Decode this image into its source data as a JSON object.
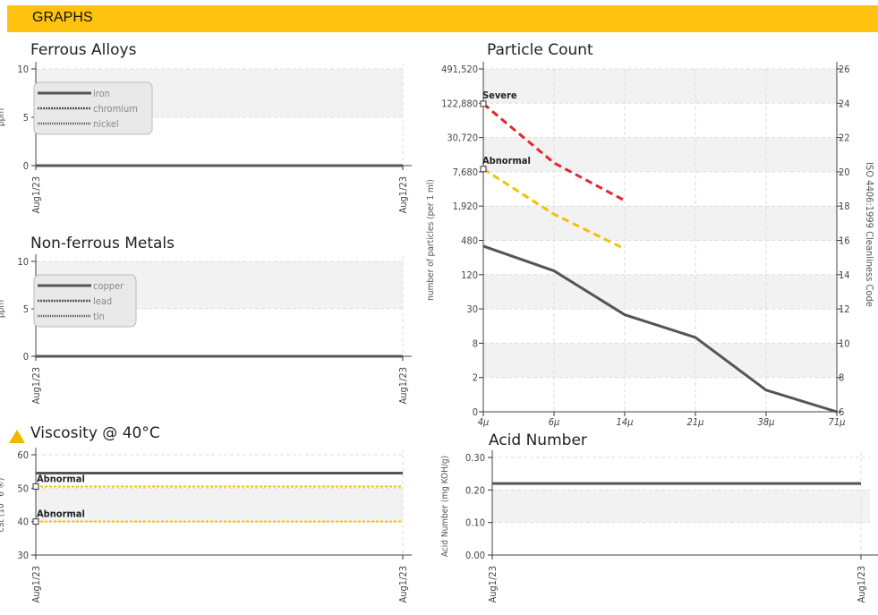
{
  "header": {
    "title": "GRAPHS"
  },
  "colors": {
    "banner": "#FFC20E",
    "line": "#555555",
    "severe": "#E3262B",
    "abnormal": "#F2C200",
    "band": "#f2f2f2",
    "grid": "#dddddd"
  },
  "chart_data": [
    {
      "id": "ferrous",
      "type": "line",
      "title": "Ferrous Alloys",
      "ylabel": "ppm",
      "ylim": [
        0,
        10
      ],
      "yticks": [
        "0",
        "5",
        "10"
      ],
      "x": [
        "Aug1/23",
        "Aug1/23"
      ],
      "legend_placement": "top-left",
      "series": [
        {
          "name": "iron",
          "values": [
            0,
            0
          ]
        },
        {
          "name": "chromium",
          "values": [
            0,
            0
          ]
        },
        {
          "name": "nickel",
          "values": [
            0,
            0
          ]
        }
      ]
    },
    {
      "id": "nonferrous",
      "type": "line",
      "title": "Non-ferrous Metals",
      "ylabel": "ppm",
      "ylim": [
        0,
        10
      ],
      "yticks": [
        "0",
        "5",
        "10"
      ],
      "x": [
        "Aug1/23",
        "Aug1/23"
      ],
      "legend_placement": "top-left",
      "series": [
        {
          "name": "copper",
          "values": [
            0,
            0
          ]
        },
        {
          "name": "lead",
          "values": [
            0,
            0
          ]
        },
        {
          "name": "tin",
          "values": [
            0,
            0
          ]
        }
      ]
    },
    {
      "id": "viscosity",
      "type": "line",
      "title": "Viscosity @ 40°C",
      "ylabel": "cSt (10^6 ®)",
      "ylim": [
        30,
        60
      ],
      "yticks": [
        "30",
        "40",
        "50",
        "60"
      ],
      "x": [
        "Aug1/23",
        "Aug1/23"
      ],
      "series": [
        {
          "values": [
            54.5,
            54.5
          ]
        }
      ],
      "limits": [
        {
          "label": "Abnormal",
          "value": 50.5
        },
        {
          "label": "Abnormal",
          "value": 40
        }
      ]
    },
    {
      "id": "particle",
      "type": "line",
      "title": "Particle Count",
      "ylabel": "number of particles (per 1 ml)",
      "ylabel_right": "ISO 4406:1999 Cleanliness Code",
      "scale": "log",
      "ylim": [
        0,
        491520
      ],
      "yticks": [
        "0",
        "2",
        "8",
        "30",
        "120",
        "480",
        "1,920",
        "7,680",
        "30,720",
        "122,880",
        "491,520"
      ],
      "yticks_right": [
        "6",
        "8",
        "10",
        "12",
        "14",
        "16",
        "18",
        "20",
        "22",
        "24",
        "26"
      ],
      "categories": [
        "4μ",
        "6μ",
        "14μ",
        "21μ",
        "38μ",
        "71μ"
      ],
      "series": [
        {
          "values": [
            380,
            140,
            24,
            10,
            1.2,
            0
          ]
        }
      ],
      "limits": [
        {
          "label": "Severe",
          "values": [
            120000,
            11000,
            2400
          ]
        },
        {
          "label": "Abnormal",
          "values": [
            8600,
            1380,
            340
          ]
        }
      ]
    },
    {
      "id": "acid",
      "type": "line",
      "title": "Acid Number",
      "ylabel": "Acid Number (mg KOH/g)",
      "ylim": [
        0,
        0.3
      ],
      "yticks": [
        "0.00",
        "0.10",
        "0.20",
        "0.30"
      ],
      "x": [
        "Aug1/23",
        "Aug1/23"
      ],
      "series": [
        {
          "values": [
            0.22,
            0.22
          ]
        }
      ]
    }
  ]
}
